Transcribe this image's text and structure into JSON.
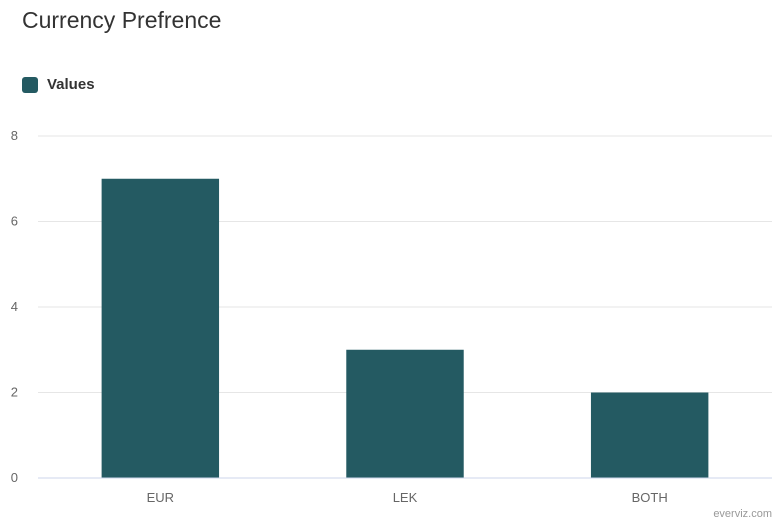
{
  "chart_data": {
    "type": "bar",
    "title": "Currency Prefrence",
    "xlabel": "",
    "ylabel": "",
    "categories": [
      "EUR",
      "LEK",
      "BOTH"
    ],
    "series": [
      {
        "name": "Values",
        "values": [
          7,
          3,
          2
        ]
      }
    ],
    "ylim": [
      0,
      8
    ],
    "yticks": [
      "0",
      "2",
      "4",
      "6",
      "8"
    ],
    "grid": true,
    "legend": "top-left",
    "colors": {
      "bar": "#245A62",
      "grid": "#E6E6E6",
      "axis_text": "#666666"
    }
  },
  "credit": "everviz.com"
}
